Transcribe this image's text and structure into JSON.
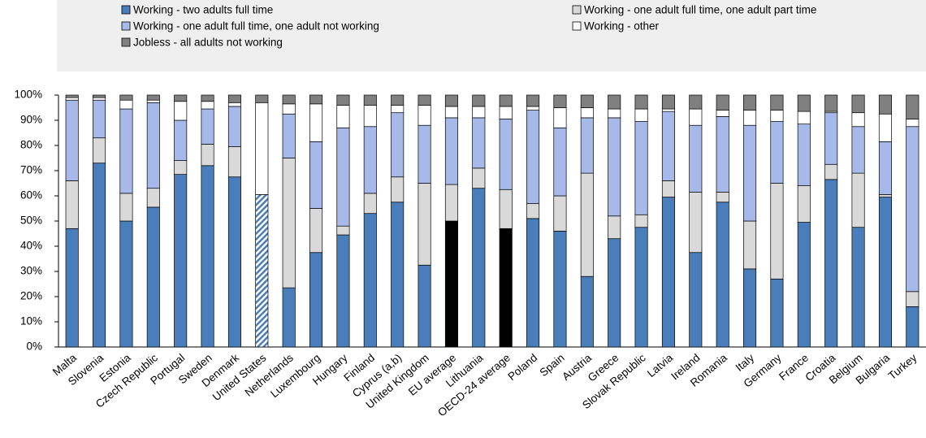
{
  "chart_data": {
    "type": "stacked_bar",
    "categories": [
      "Malta",
      "Slovenia",
      "Estonia",
      "Czech Republic",
      "Portugal",
      "Sweden",
      "Denmark",
      "United States",
      "Netherlands",
      "Luxembourg",
      "Hungary",
      "Finland",
      "Cyprus (a,b)",
      "United Kingdom",
      "EU average",
      "Lithuania",
      "OECD-24 average",
      "Poland",
      "Spain",
      "Austria",
      "Greece",
      "Slovak Republic",
      "Latvia",
      "Ireland",
      "Romania",
      "Italy",
      "Germany",
      "France",
      "Croatia",
      "Belgium",
      "Bulgaria",
      "Turkey"
    ],
    "series": [
      {
        "name": "Working - two adults full time",
        "color": "#4a7ebb",
        "values": [
          47,
          73,
          50,
          55.5,
          68.5,
          72,
          67.5,
          60.5,
          23.5,
          37.5,
          44.5,
          53,
          57.5,
          32.5,
          50,
          63,
          47,
          51,
          46,
          28,
          43,
          47.5,
          59.5,
          37.5,
          57.5,
          31,
          27,
          49.5,
          66.5,
          47.5,
          59.5,
          16
        ]
      },
      {
        "name": "Working - one adult full time, one adult part time",
        "color": "#d9d9d9",
        "values": [
          19,
          10,
          11,
          7.5,
          5.5,
          8.5,
          12,
          null,
          51.5,
          17.5,
          3.5,
          8,
          10,
          32.5,
          14.5,
          8,
          15.5,
          6,
          14,
          41,
          9,
          5,
          6.5,
          24,
          4,
          19,
          38,
          14.5,
          6,
          21.5,
          1,
          6
        ]
      },
      {
        "name": "Working - one adult full time, one adult not working",
        "color": "#a6b9e8",
        "values": [
          32,
          15,
          33.5,
          34,
          16,
          14,
          16,
          null,
          17.5,
          26.5,
          39,
          26.5,
          25.5,
          23,
          26.5,
          20,
          28,
          37,
          27,
          22,
          39,
          37,
          27.5,
          26.5,
          30,
          38,
          24.5,
          24.5,
          20.5,
          18.5,
          21,
          65.5
        ]
      },
      {
        "name": "Working - other",
        "color": "#ffffff",
        "values": [
          1,
          1,
          3.5,
          1,
          7.5,
          3,
          1.5,
          36.5,
          4,
          15,
          9,
          8.5,
          3,
          8,
          4.5,
          4.5,
          5,
          1.5,
          8,
          4,
          3.5,
          5,
          1,
          6.5,
          2.5,
          6,
          4.5,
          5,
          0.5,
          5.5,
          11,
          3
        ]
      },
      {
        "name": "Jobless - all adults not working",
        "color": "#808080",
        "values": [
          1,
          1,
          2,
          2,
          2.5,
          2.5,
          3,
          3,
          3.5,
          3.5,
          4,
          4,
          4,
          4,
          4.5,
          4.5,
          4.5,
          4.5,
          5,
          5,
          5.5,
          5.5,
          5.5,
          5.5,
          6,
          6,
          6,
          6.5,
          6.5,
          7,
          7.5,
          9.5
        ]
      }
    ],
    "highlight_points": [
      14,
      16
    ],
    "highlight_color": "#000000",
    "hatched_points": [
      7
    ],
    "ylim": [
      0,
      100
    ],
    "yticks": [
      {
        "value": 0,
        "label": "0%"
      },
      {
        "value": 10,
        "label": "10%"
      },
      {
        "value": 20,
        "label": "20%"
      },
      {
        "value": 30,
        "label": "30%"
      },
      {
        "value": 40,
        "label": "40%"
      },
      {
        "value": 50,
        "label": "50%"
      },
      {
        "value": 60,
        "label": "60%"
      },
      {
        "value": 70,
        "label": "70%"
      },
      {
        "value": 80,
        "label": "80%"
      },
      {
        "value": 90,
        "label": "90%"
      },
      {
        "value": 100,
        "label": "100%"
      }
    ],
    "grid": false
  }
}
